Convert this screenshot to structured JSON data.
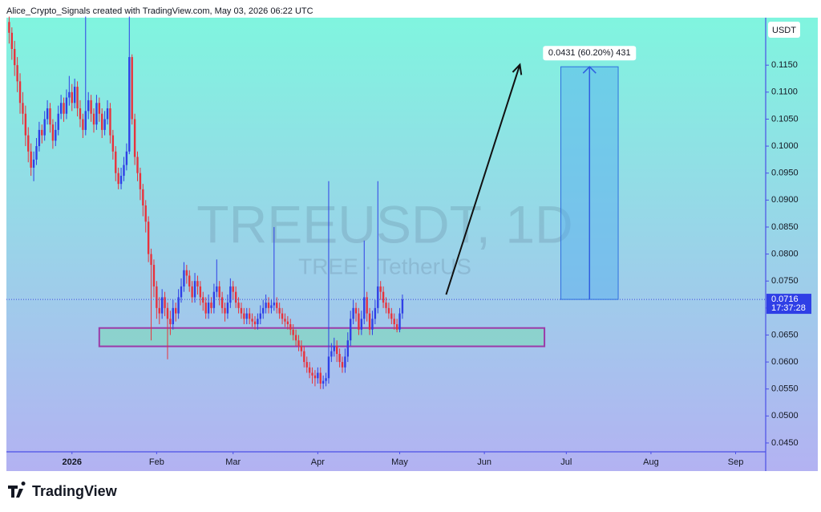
{
  "chart_data": {
    "type": "candlestick",
    "header": "Alice_Crypto_Signals created with TradingView.com, May 03, 2026 06:22 UTC",
    "watermark": "TREEUSDT, 1D",
    "watermark_subtitle": "TREE · TetherUS",
    "currency": "USDT",
    "brand": "TradingView",
    "up_color": "#2f3fe6",
    "down_color": "#e8323c",
    "x": [
      -23,
      -22,
      -21,
      -20,
      -19,
      -18,
      -17,
      -16,
      -15,
      -14,
      -13,
      -12,
      -11,
      -10,
      -9,
      -8,
      -7,
      -6,
      -5,
      -4,
      -3,
      -2,
      -1,
      0,
      1,
      2,
      3,
      4,
      5,
      6,
      7,
      8,
      9,
      10,
      11,
      12,
      13,
      14,
      15,
      16,
      17,
      18,
      19,
      20,
      21,
      22,
      23,
      24,
      25,
      26,
      27,
      28,
      29,
      30,
      31,
      32,
      33,
      34,
      35,
      36,
      37,
      38,
      39,
      40,
      41,
      42,
      43,
      44,
      45,
      46,
      47,
      48,
      49,
      50,
      51,
      52,
      53,
      54,
      55,
      56,
      57,
      58,
      59,
      60,
      61,
      62,
      63,
      64,
      65,
      66,
      67,
      68,
      69,
      70,
      71,
      72,
      73,
      74,
      75,
      76,
      77,
      78,
      79,
      80,
      81,
      82,
      83,
      84,
      85,
      86,
      87,
      88,
      89,
      90,
      91,
      92,
      93,
      94,
      95,
      96,
      97,
      98,
      99,
      100,
      101,
      102,
      103,
      104,
      105,
      106,
      107,
      108,
      109,
      110,
      111,
      112,
      113,
      114,
      115,
      116,
      117,
      118,
      119,
      120,
      121
    ],
    "open": [
      0.123,
      0.121,
      0.118,
      0.115,
      0.112,
      0.108,
      0.106,
      0.102,
      0.099,
      0.096,
      0.0975,
      0.1,
      0.103,
      0.102,
      0.105,
      0.107,
      0.104,
      0.101,
      0.103,
      0.106,
      0.108,
      0.106,
      0.109,
      0.11,
      0.108,
      0.111,
      0.107,
      0.105,
      0.103,
      0.1065,
      0.1085,
      0.106,
      0.104,
      0.108,
      0.106,
      0.103,
      0.105,
      0.107,
      0.102,
      0.099,
      0.095,
      0.093,
      0.0945,
      0.0965,
      0.099,
      0.1165,
      0.105,
      0.098,
      0.095,
      0.092,
      0.089,
      0.086,
      0.08,
      0.078,
      0.074,
      0.07,
      0.069,
      0.072,
      0.07,
      0.068,
      0.067,
      0.07,
      0.069,
      0.072,
      0.074,
      0.077,
      0.076,
      0.074,
      0.072,
      0.075,
      0.074,
      0.072,
      0.071,
      0.069,
      0.071,
      0.07,
      0.073,
      0.074,
      0.072,
      0.07,
      0.069,
      0.071,
      0.074,
      0.073,
      0.071,
      0.07,
      0.069,
      0.068,
      0.069,
      0.068,
      0.0675,
      0.067,
      0.068,
      0.069,
      0.07,
      0.071,
      0.07,
      0.0705,
      0.071,
      0.07,
      0.069,
      0.068,
      0.0675,
      0.067,
      0.066,
      0.065,
      0.064,
      0.063,
      0.062,
      0.06,
      0.059,
      0.058,
      0.0575,
      0.057,
      0.058,
      0.056,
      0.0565,
      0.057,
      0.061,
      0.062,
      0.063,
      0.0615,
      0.06,
      0.059,
      0.061,
      0.064,
      0.068,
      0.07,
      0.069,
      0.066,
      0.068,
      0.072,
      0.069,
      0.066,
      0.068,
      0.07,
      0.074,
      0.073,
      0.071,
      0.07,
      0.069,
      0.068,
      0.067,
      0.066,
      0.069
    ],
    "high": [
      0.124,
      0.122,
      0.1195,
      0.1165,
      0.1135,
      0.11,
      0.1075,
      0.1035,
      0.1005,
      0.099,
      0.1015,
      0.1045,
      0.104,
      0.1065,
      0.1085,
      0.108,
      0.105,
      0.1045,
      0.1075,
      0.1095,
      0.109,
      0.1105,
      0.113,
      0.1115,
      0.1125,
      0.112,
      0.1085,
      0.106,
      0.124,
      0.11,
      0.1095,
      0.107,
      0.1095,
      0.109,
      0.107,
      0.1065,
      0.1085,
      0.108,
      0.103,
      0.1,
      0.096,
      0.096,
      0.098,
      0.1005,
      0.124,
      0.117,
      0.106,
      0.099,
      0.096,
      0.093,
      0.09,
      0.087,
      0.081,
      0.079,
      0.075,
      0.072,
      0.0735,
      0.073,
      0.071,
      0.0695,
      0.0715,
      0.071,
      0.0735,
      0.0755,
      0.0785,
      0.078,
      0.077,
      0.075,
      0.0765,
      0.076,
      0.075,
      0.073,
      0.072,
      0.0725,
      0.072,
      0.0745,
      0.079,
      0.075,
      0.073,
      0.071,
      0.0725,
      0.0755,
      0.075,
      0.074,
      0.072,
      0.071,
      0.07,
      0.07,
      0.07,
      0.069,
      0.0685,
      0.069,
      0.0705,
      0.0715,
      0.0725,
      0.072,
      0.0715,
      0.085,
      0.072,
      0.071,
      0.07,
      0.069,
      0.0685,
      0.068,
      0.067,
      0.066,
      0.065,
      0.064,
      0.063,
      0.061,
      0.06,
      0.059,
      0.0585,
      0.059,
      0.059,
      0.0575,
      0.058,
      0.0935,
      0.0635,
      0.0645,
      0.064,
      0.0625,
      0.061,
      0.0625,
      0.0655,
      0.0695,
      0.0715,
      0.071,
      0.07,
      0.0695,
      0.0825,
      0.073,
      0.07,
      0.0695,
      0.0715,
      0.0935,
      0.075,
      0.074,
      0.072,
      0.071,
      0.07,
      0.069,
      0.068,
      0.07,
      0.0725
    ],
    "low": [
      0.119,
      0.116,
      0.113,
      0.11,
      0.106,
      0.104,
      0.1,
      0.097,
      0.0945,
      0.0935,
      0.0965,
      0.099,
      0.1005,
      0.101,
      0.104,
      0.1025,
      0.0995,
      0.1,
      0.102,
      0.105,
      0.1045,
      0.105,
      0.1075,
      0.1065,
      0.107,
      0.1055,
      0.1035,
      0.1015,
      0.102,
      0.105,
      0.1045,
      0.1025,
      0.103,
      0.1045,
      0.1015,
      0.102,
      0.104,
      0.1005,
      0.0975,
      0.0935,
      0.092,
      0.092,
      0.0935,
      0.0955,
      0.0985,
      0.104,
      0.0965,
      0.0935,
      0.09,
      0.087,
      0.084,
      0.0785,
      0.064,
      0.072,
      0.068,
      0.067,
      0.068,
      0.0685,
      0.0605,
      0.065,
      0.066,
      0.0675,
      0.068,
      0.071,
      0.073,
      0.0745,
      0.073,
      0.071,
      0.071,
      0.0725,
      0.0705,
      0.0695,
      0.068,
      0.068,
      0.069,
      0.069,
      0.072,
      0.0705,
      0.069,
      0.0675,
      0.068,
      0.07,
      0.0715,
      0.07,
      0.069,
      0.068,
      0.067,
      0.067,
      0.067,
      0.0665,
      0.066,
      0.066,
      0.067,
      0.068,
      0.069,
      0.069,
      0.069,
      0.0695,
      0.069,
      0.068,
      0.067,
      0.0665,
      0.066,
      0.065,
      0.064,
      0.063,
      0.062,
      0.061,
      0.059,
      0.058,
      0.057,
      0.056,
      0.0555,
      0.056,
      0.055,
      0.055,
      0.0555,
      0.056,
      0.06,
      0.061,
      0.06,
      0.059,
      0.058,
      0.058,
      0.06,
      0.063,
      0.067,
      0.0675,
      0.065,
      0.065,
      0.067,
      0.0675,
      0.065,
      0.065,
      0.067,
      0.069,
      0.0715,
      0.07,
      0.069,
      0.068,
      0.067,
      0.066,
      0.0655,
      0.0655,
      0.068
    ],
    "close": [
      0.121,
      0.118,
      0.115,
      0.112,
      0.108,
      0.106,
      0.102,
      0.099,
      0.096,
      0.0975,
      0.1,
      0.103,
      0.102,
      0.105,
      0.107,
      0.104,
      0.101,
      0.103,
      0.106,
      0.108,
      0.106,
      0.109,
      0.11,
      0.108,
      0.111,
      0.107,
      0.105,
      0.103,
      0.1065,
      0.1085,
      0.106,
      0.104,
      0.108,
      0.106,
      0.103,
      0.105,
      0.107,
      0.102,
      0.099,
      0.095,
      0.093,
      0.0945,
      0.0965,
      0.099,
      0.1165,
      0.105,
      0.098,
      0.095,
      0.092,
      0.089,
      0.086,
      0.08,
      0.078,
      0.074,
      0.07,
      0.069,
      0.072,
      0.07,
      0.068,
      0.067,
      0.07,
      0.069,
      0.072,
      0.074,
      0.077,
      0.076,
      0.074,
      0.072,
      0.075,
      0.074,
      0.072,
      0.071,
      0.069,
      0.071,
      0.07,
      0.073,
      0.074,
      0.072,
      0.07,
      0.069,
      0.071,
      0.074,
      0.073,
      0.071,
      0.07,
      0.069,
      0.068,
      0.069,
      0.068,
      0.0675,
      0.067,
      0.068,
      0.069,
      0.07,
      0.071,
      0.07,
      0.0705,
      0.071,
      0.07,
      0.069,
      0.068,
      0.0675,
      0.067,
      0.066,
      0.065,
      0.064,
      0.063,
      0.062,
      0.06,
      0.059,
      0.058,
      0.0575,
      0.057,
      0.058,
      0.056,
      0.0565,
      0.057,
      0.061,
      0.062,
      0.063,
      0.0615,
      0.06,
      0.059,
      0.061,
      0.064,
      0.068,
      0.07,
      0.069,
      0.066,
      0.068,
      0.072,
      0.069,
      0.066,
      0.068,
      0.07,
      0.074,
      0.073,
      0.071,
      0.07,
      0.069,
      0.068,
      0.067,
      0.066,
      0.069,
      0.0716
    ],
    "zone": {
      "x": [
        10,
        173
      ],
      "y": [
        0.0629,
        0.0663
      ]
    },
    "target": {
      "x": [
        179,
        200
      ],
      "y": [
        0.0716,
        0.1147
      ],
      "label": "0.0431 (60.20%) 431"
    },
    "arrow": {
      "x": [
        137,
        164
      ],
      "y": [
        0.0725,
        0.1151
      ]
    },
    "last_price": {
      "value": 0.0716,
      "label": "0.0716",
      "countdown": "17:37:28"
    },
    "xlim": [
      -24,
      254
    ],
    "xticks": [
      {
        "value": 0,
        "label": "2026"
      },
      {
        "value": 31,
        "label": "Feb"
      },
      {
        "value": 59,
        "label": "Mar"
      },
      {
        "value": 90,
        "label": "Apr"
      },
      {
        "value": 120,
        "label": "May"
      },
      {
        "value": 151,
        "label": "Jun"
      },
      {
        "value": 181,
        "label": "Jul"
      },
      {
        "value": 212,
        "label": "Aug"
      },
      {
        "value": 243,
        "label": "Sep"
      }
    ],
    "ylim": [
      0.04336,
      0.1238
    ],
    "yticks": [
      {
        "value": 0.115,
        "label": "0.1150"
      },
      {
        "value": 0.11,
        "label": "0.1100"
      },
      {
        "value": 0.105,
        "label": "0.1050"
      },
      {
        "value": 0.1,
        "label": "0.1000"
      },
      {
        "value": 0.095,
        "label": "0.0950"
      },
      {
        "value": 0.09,
        "label": "0.0900"
      },
      {
        "value": 0.085,
        "label": "0.0850"
      },
      {
        "value": 0.08,
        "label": "0.0800"
      },
      {
        "value": 0.075,
        "label": "0.0750"
      },
      {
        "value": 0.07,
        "label": "0.0700"
      },
      {
        "value": 0.065,
        "label": "0.0650"
      },
      {
        "value": 0.06,
        "label": "0.0600"
      },
      {
        "value": 0.055,
        "label": "0.0550"
      },
      {
        "value": 0.05,
        "label": "0.0500"
      },
      {
        "value": 0.045,
        "label": "0.0450"
      }
    ]
  }
}
